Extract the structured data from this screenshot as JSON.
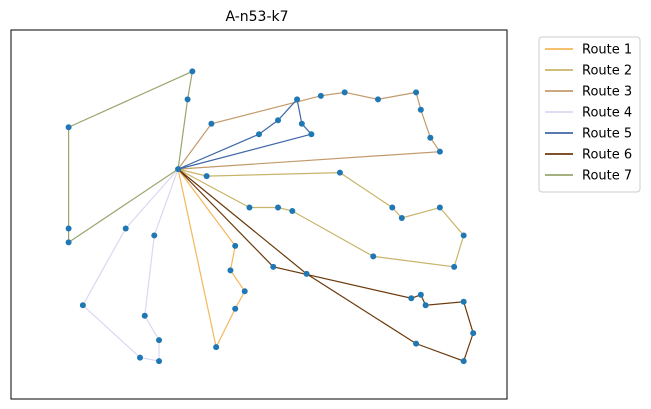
{
  "chart_data": {
    "type": "line",
    "title": "A-n53-k7",
    "xlabel": "",
    "ylabel": "",
    "axes_ticks": false,
    "grid": false,
    "legend_position": "outside-top-right",
    "xlim": [
      0,
      100
    ],
    "ylim": [
      0,
      100
    ],
    "depot": [
      33,
      63
    ],
    "series": [
      {
        "name": "Route 1",
        "color": "#f5b75a",
        "points": [
          [
            33,
            63
          ],
          [
            41,
            12
          ],
          [
            45,
            23
          ],
          [
            47,
            28
          ],
          [
            44,
            34
          ],
          [
            45,
            41
          ],
          [
            33,
            63
          ]
        ]
      },
      {
        "name": "Route 2",
        "color": "#c8b46a",
        "points": [
          [
            33,
            63
          ],
          [
            39,
            61
          ],
          [
            67,
            62
          ],
          [
            78,
            52
          ],
          [
            80,
            49
          ],
          [
            88,
            52
          ],
          [
            93,
            44
          ],
          [
            91,
            35
          ],
          [
            74,
            38
          ],
          [
            57,
            51
          ],
          [
            54,
            52
          ],
          [
            48,
            52
          ],
          [
            33,
            63
          ]
        ]
      },
      {
        "name": "Route 3",
        "color": "#c49a6c",
        "points": [
          [
            33,
            63
          ],
          [
            88,
            68
          ],
          [
            86,
            72
          ],
          [
            84,
            80
          ],
          [
            83,
            85
          ],
          [
            75,
            83
          ],
          [
            68,
            85
          ],
          [
            63,
            84
          ],
          [
            40,
            76
          ],
          [
            33,
            63
          ]
        ]
      },
      {
        "name": "Route 4",
        "color": "#dad8f2",
        "points": [
          [
            33,
            63
          ],
          [
            28,
            44
          ],
          [
            26,
            21
          ],
          [
            29,
            14
          ],
          [
            29,
            8
          ],
          [
            25,
            9
          ],
          [
            13,
            24
          ],
          [
            22,
            46
          ],
          [
            33,
            63
          ]
        ]
      },
      {
        "name": "Route 5",
        "color": "#3e67a6",
        "points": [
          [
            33,
            63
          ],
          [
            61,
            73
          ],
          [
            59,
            76
          ],
          [
            58,
            83
          ],
          [
            54,
            77
          ],
          [
            50,
            73
          ],
          [
            33,
            63
          ]
        ]
      },
      {
        "name": "Route 6",
        "color": "#6b3a0c",
        "points": [
          [
            33,
            63
          ],
          [
            53,
            35
          ],
          [
            82,
            26
          ],
          [
            84,
            27
          ],
          [
            85,
            24
          ],
          [
            93,
            25
          ],
          [
            95,
            16
          ],
          [
            93,
            8
          ],
          [
            83,
            13
          ],
          [
            60,
            33
          ],
          [
            33,
            63
          ]
        ]
      },
      {
        "name": "Route 7",
        "color": "#98a66e",
        "points": [
          [
            33,
            63
          ],
          [
            10,
            42
          ],
          [
            10,
            46
          ],
          [
            10,
            75
          ],
          [
            36,
            91
          ],
          [
            35,
            83
          ],
          [
            33,
            63
          ]
        ]
      }
    ]
  }
}
